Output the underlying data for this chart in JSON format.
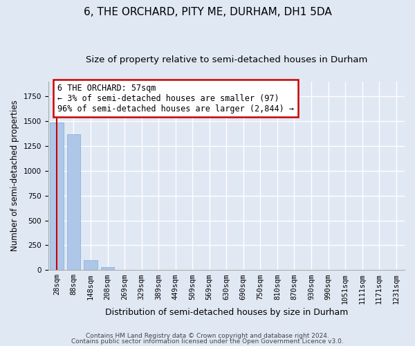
{
  "title": "6, THE ORCHARD, PITY ME, DURHAM, DH1 5DA",
  "subtitle": "Size of property relative to semi-detached houses in Durham",
  "xlabel": "Distribution of semi-detached houses by size in Durham",
  "ylabel": "Number of semi-detached properties",
  "categories": [
    "28sqm",
    "88sqm",
    "148sqm",
    "208sqm",
    "269sqm",
    "329sqm",
    "389sqm",
    "449sqm",
    "509sqm",
    "569sqm",
    "630sqm",
    "690sqm",
    "750sqm",
    "810sqm",
    "870sqm",
    "930sqm",
    "990sqm",
    "1051sqm",
    "1111sqm",
    "1171sqm",
    "1231sqm"
  ],
  "values": [
    1490,
    1370,
    97,
    30,
    0,
    0,
    0,
    0,
    0,
    0,
    0,
    0,
    0,
    0,
    0,
    0,
    0,
    0,
    0,
    0,
    0
  ],
  "bar_color": "#aec6e8",
  "bar_edge_color": "#7aadd4",
  "background_color": "#e0e8f4",
  "grid_color": "#ffffff",
  "annotation_text": "6 THE ORCHARD: 57sqm\n← 3% of semi-detached houses are smaller (97)\n96% of semi-detached houses are larger (2,844) →",
  "annotation_box_color": "#ffffff",
  "annotation_box_edge": "#cc0000",
  "red_line_color": "#cc0000",
  "ylim": [
    0,
    1900
  ],
  "title_fontsize": 11,
  "subtitle_fontsize": 9.5,
  "tick_fontsize": 7.5,
  "ylabel_fontsize": 8.5,
  "xlabel_fontsize": 9,
  "footer1": "Contains HM Land Registry data © Crown copyright and database right 2024.",
  "footer2": "Contains public sector information licensed under the Open Government Licence v3.0."
}
